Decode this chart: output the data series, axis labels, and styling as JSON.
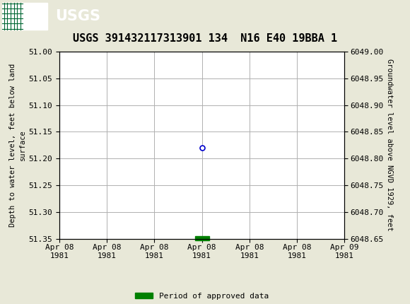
{
  "title": "USGS 391432117313901 134  N16 E40 19BBA 1",
  "ylabel_left": "Depth to water level, feet below land\nsurface",
  "ylabel_right": "Groundwater level above NGVD 1929, feet",
  "ylim_left": [
    51.35,
    51.0
  ],
  "ylim_right": [
    6048.65,
    6049.0
  ],
  "yticks_left": [
    51.0,
    51.05,
    51.1,
    51.15,
    51.2,
    51.25,
    51.3,
    51.35
  ],
  "yticks_right": [
    6049.0,
    6048.95,
    6048.9,
    6048.85,
    6048.8,
    6048.75,
    6048.7,
    6048.65
  ],
  "data_point_x_hours": 12,
  "data_point_y": 51.18,
  "data_point_color": "#0000cc",
  "data_point_markersize": 5,
  "bar_x_hours": 12,
  "bar_color": "#008000",
  "header_color": "#006633",
  "header_text_color": "#ffffff",
  "background_color": "#e8e8d8",
  "plot_background": "#ffffff",
  "grid_color": "#b0b0b0",
  "font_family": "monospace",
  "title_fontsize": 11,
  "axis_fontsize": 7.5,
  "tick_fontsize": 8,
  "legend_label": "Period of approved data",
  "legend_color": "#008000",
  "xtick_labels": [
    "Apr 08\n1981",
    "Apr 08\n1981",
    "Apr 08\n1981",
    "Apr 08\n1981",
    "Apr 08\n1981",
    "Apr 08\n1981",
    "Apr 09\n1981"
  ],
  "xtick_positions_hours": [
    0,
    4,
    8,
    12,
    16,
    20,
    24
  ]
}
